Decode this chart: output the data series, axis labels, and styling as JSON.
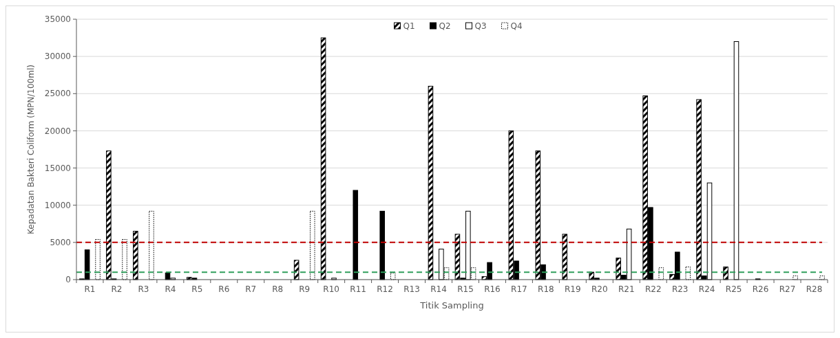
{
  "chart_data": {
    "type": "bar",
    "xlabel": "Titik Sampling",
    "ylabel": "Kepadatan Bakteri Coliform (MPN/100ml)",
    "categories": [
      "R1",
      "R2",
      "R3",
      "R4",
      "R5",
      "R6",
      "R7",
      "R8",
      "R9",
      "R10",
      "R11",
      "R12",
      "R13",
      "R14",
      "R15",
      "R16",
      "R17",
      "R18",
      "R19",
      "R20",
      "R21",
      "R22",
      "R23",
      "R24",
      "R25",
      "R26",
      "R27",
      "R28"
    ],
    "series": [
      {
        "name": "Q1",
        "color": "#000000",
        "values": [
          100,
          17300,
          6500,
          null,
          300,
          null,
          null,
          null,
          2600,
          32500,
          null,
          null,
          null,
          26000,
          6100,
          400,
          20000,
          17300,
          6100,
          1000,
          2900,
          24700,
          700,
          24200,
          1700,
          null,
          null,
          null
        ]
      },
      {
        "name": "Q2",
        "color": "#000000",
        "values": [
          4000,
          100,
          null,
          900,
          200,
          null,
          null,
          null,
          null,
          null,
          12000,
          9200,
          null,
          null,
          200,
          2300,
          2500,
          2000,
          null,
          200,
          600,
          9700,
          3700,
          500,
          null,
          100,
          null,
          null
        ]
      },
      {
        "name": "Q3",
        "color": "#ffffff",
        "values": [
          null,
          null,
          null,
          200,
          null,
          null,
          null,
          null,
          null,
          200,
          null,
          null,
          null,
          4100,
          9200,
          null,
          null,
          null,
          null,
          null,
          6800,
          null,
          null,
          13000,
          32000,
          null,
          null,
          null
        ]
      },
      {
        "name": "Q4",
        "color": "#ffffff",
        "values": [
          5400,
          5400,
          9200,
          null,
          null,
          null,
          null,
          null,
          9200,
          null,
          null,
          900,
          null,
          1600,
          1600,
          null,
          null,
          null,
          null,
          null,
          null,
          1600,
          1700,
          null,
          null,
          null,
          500,
          500
        ]
      }
    ],
    "ylim": [
      0,
      35000
    ],
    "yticks": [
      0,
      5000,
      10000,
      15000,
      20000,
      25000,
      30000,
      35000
    ],
    "grid": "y",
    "legend": "top",
    "ref_lines": [
      {
        "axis": "y",
        "value": 5000,
        "color": "#c00000",
        "line_style": "dashed"
      },
      {
        "axis": "y",
        "value": 1000,
        "color": "#2e9e5b",
        "line_style": "dashed"
      }
    ]
  }
}
